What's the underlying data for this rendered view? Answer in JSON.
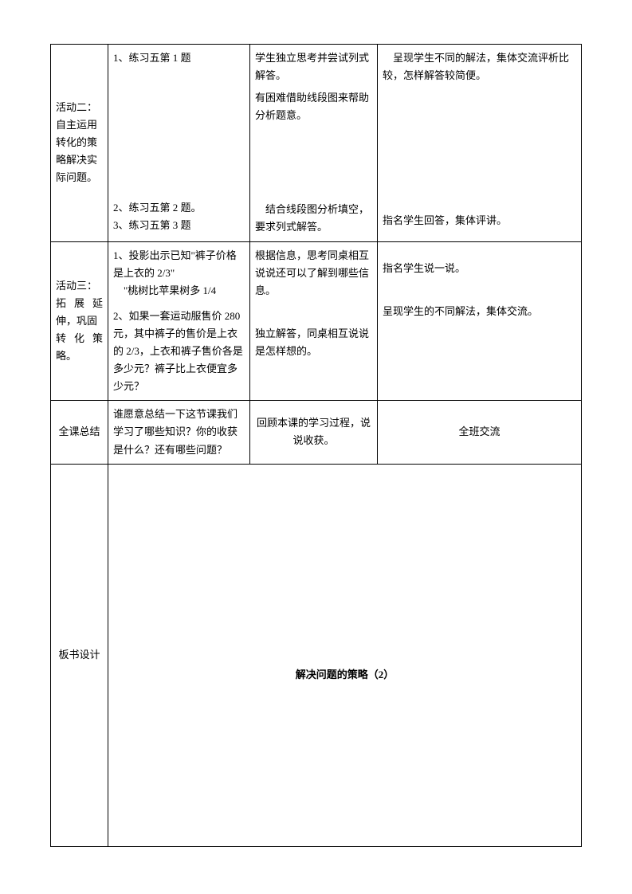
{
  "table": {
    "row1": {
      "label": "活动二：自主运用转化的策略解决实际问题。",
      "col2_a": "1、练习五第 1 题",
      "col2_b": "2、练习五第 2 题。",
      "col2_c": "3、练习五第 3 题",
      "col3_a1": "学生独立思考并尝试列式解答。",
      "col3_a2": "有困难借助线段图来帮助分析题意。",
      "col3_b": "　结合线段图分析填空，要求列式解答。",
      "col4_a": "　呈现学生不同的解法，集体交流评析比较，怎样解答较简便。",
      "col4_b": "指名学生回答，集体评讲。"
    },
    "row2": {
      "label_l1": "活动三：",
      "label_l2": "拓 展 延",
      "label_l3": "伸，巩固",
      "label_l4": "转 化 策",
      "label_l5": "略。",
      "col2_a1": "1、投影出示已知\"裤子价格是上衣的 2/3\"",
      "col2_a2": "　\"桃树比苹果树多 1/4",
      "col2_b": "2、如果一套运动服售价 280元，其中裤子的售价是上衣的 2/3，上衣和裤子售价各是多少元？裤子比上衣便宜多少元？",
      "col3_a": "根据信息，思考同桌相互说说还可以了解到哪些信息。",
      "col3_b": "独立解答，同桌相互说说是怎样想的。",
      "col4_a": "指名学生说一说。",
      "col4_b": "呈现学生的不同解法，集体交流。"
    },
    "row3": {
      "label": "全课总结",
      "col2": "谁愿意总结一下这节课我们学习了哪些知识？你的收获是什么？还有哪些问题？",
      "col3": "回顾本课的学习过程，说说收获。",
      "col4": "全班交流"
    },
    "row4": {
      "label": "板书设计",
      "title": "解决问题的策略（2）"
    }
  }
}
